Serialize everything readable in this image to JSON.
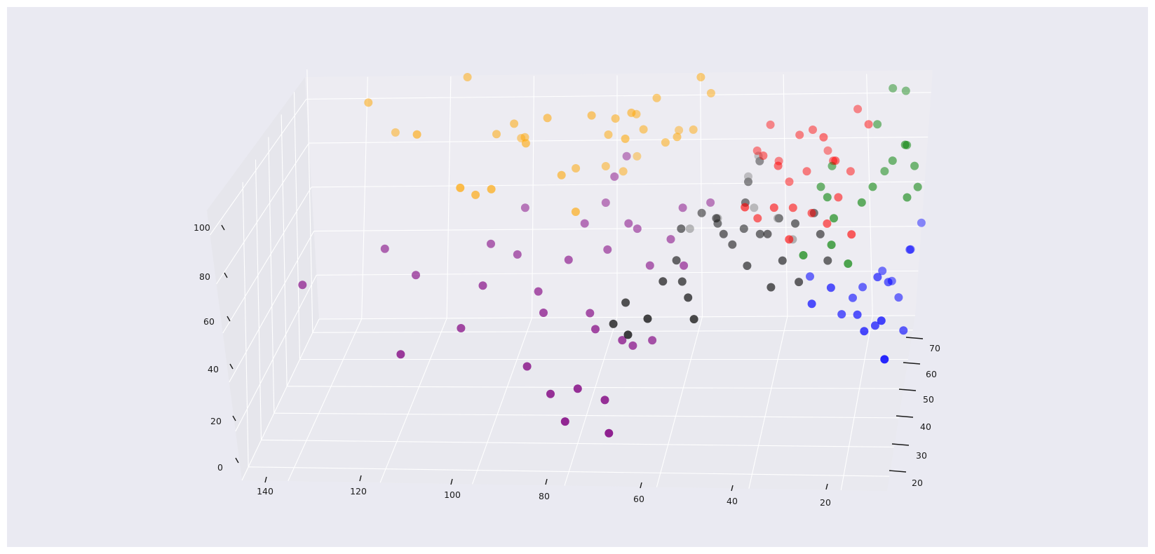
{
  "chart_data": {
    "type": "scatter",
    "projection": "3d",
    "title": "",
    "xlabel": "",
    "ylabel": "",
    "zlabel": "",
    "xlim": [
      10,
      150
    ],
    "ylim": [
      15,
      75
    ],
    "zlim": [
      0,
      110
    ],
    "x_ticks": [
      "140",
      "120",
      "100",
      "80",
      "60",
      "40",
      "20"
    ],
    "y_ticks": [
      "20",
      "30",
      "40",
      "50",
      "60",
      "70"
    ],
    "z_ticks": [
      "0",
      "20",
      "40",
      "60",
      "80",
      "100"
    ],
    "grid": true,
    "legend": "none",
    "series": [
      {
        "color": "#ffa500",
        "points": [
          [
            133,
            58,
            100
          ],
          [
            120,
            50,
            95
          ],
          [
            128,
            62,
            85
          ],
          [
            111,
            60,
            108
          ],
          [
            104,
            58,
            88
          ],
          [
            100,
            58,
            92
          ],
          [
            96,
            52,
            90
          ],
          [
            100,
            65,
            80
          ],
          [
            98,
            60,
            85
          ],
          [
            92,
            56,
            96
          ],
          [
            82,
            56,
            97
          ],
          [
            77,
            58,
            94
          ],
          [
            73,
            56,
            98
          ],
          [
            73,
            62,
            92
          ],
          [
            68,
            60,
            100
          ],
          [
            74,
            54,
            90
          ],
          [
            79,
            60,
            86
          ],
          [
            71,
            60,
            88
          ],
          [
            66,
            60,
            83
          ],
          [
            60,
            62,
            86
          ],
          [
            63,
            58,
            87
          ],
          [
            64,
            66,
            82
          ],
          [
            58,
            60,
            108
          ],
          [
            56,
            62,
            100
          ],
          [
            88,
            52,
            78
          ],
          [
            86,
            58,
            75
          ],
          [
            80,
            62,
            72
          ],
          [
            76,
            62,
            70
          ],
          [
            84,
            48,
            68
          ],
          [
            74,
            68,
            70
          ],
          [
            102,
            44,
            80
          ],
          [
            108,
            40,
            84
          ],
          [
            106,
            46,
            76
          ]
        ]
      },
      {
        "color": "#ff0000",
        "points": [
          [
            46,
            66,
            74
          ],
          [
            44,
            62,
            76
          ],
          [
            41,
            66,
            70
          ],
          [
            38,
            62,
            66
          ],
          [
            34,
            62,
            70
          ],
          [
            30,
            68,
            72
          ],
          [
            32,
            56,
            60
          ],
          [
            28,
            62,
            74
          ],
          [
            27,
            58,
            78
          ],
          [
            24,
            62,
            70
          ],
          [
            46,
            48,
            70
          ],
          [
            40,
            52,
            66
          ],
          [
            36,
            54,
            64
          ],
          [
            28,
            52,
            60
          ],
          [
            26,
            56,
            66
          ],
          [
            22,
            48,
            60
          ],
          [
            43,
            66,
            84
          ],
          [
            40,
            58,
            76
          ],
          [
            36,
            64,
            82
          ],
          [
            33,
            64,
            84
          ],
          [
            30,
            60,
            85
          ],
          [
            23,
            66,
            90
          ],
          [
            20,
            62,
            88
          ],
          [
            44,
            54,
            60
          ],
          [
            36,
            48,
            58
          ]
        ]
      },
      {
        "color": "#008000",
        "points": [
          [
            15,
            66,
            98
          ],
          [
            12,
            66,
            97
          ],
          [
            18,
            62,
            88
          ],
          [
            11,
            56,
            86
          ],
          [
            11,
            60,
            82
          ],
          [
            14,
            58,
            78
          ],
          [
            9,
            58,
            76
          ],
          [
            10,
            52,
            70
          ],
          [
            18,
            54,
            72
          ],
          [
            20,
            50,
            70
          ],
          [
            26,
            48,
            66
          ],
          [
            28,
            52,
            70
          ],
          [
            28,
            60,
            74
          ],
          [
            30,
            56,
            70
          ],
          [
            32,
            42,
            58
          ],
          [
            26,
            44,
            60
          ],
          [
            22,
            42,
            55
          ],
          [
            16,
            60,
            72
          ],
          [
            8,
            56,
            70
          ]
        ]
      },
      {
        "color": "#0000ff",
        "points": [
          [
            12,
            26,
            36
          ],
          [
            14,
            38,
            38
          ],
          [
            16,
            48,
            44
          ],
          [
            14,
            52,
            38
          ],
          [
            10,
            60,
            42
          ],
          [
            26,
            44,
            44
          ],
          [
            30,
            42,
            40
          ],
          [
            20,
            44,
            34
          ],
          [
            18,
            40,
            32
          ],
          [
            16,
            44,
            30
          ],
          [
            10,
            48,
            24
          ],
          [
            12,
            56,
            28
          ],
          [
            14,
            60,
            30
          ],
          [
            24,
            48,
            30
          ],
          [
            22,
            52,
            32
          ],
          [
            20,
            54,
            34
          ],
          [
            16,
            58,
            36
          ],
          [
            32,
            54,
            38
          ],
          [
            8,
            66,
            46
          ],
          [
            10,
            62,
            40
          ]
        ]
      },
      {
        "color": "#000000",
        "points": [
          [
            58,
            62,
            54
          ],
          [
            54,
            60,
            52
          ],
          [
            52,
            56,
            52
          ],
          [
            48,
            60,
            50
          ],
          [
            44,
            58,
            50
          ],
          [
            42,
            56,
            52
          ],
          [
            36,
            58,
            54
          ],
          [
            32,
            60,
            56
          ],
          [
            30,
            56,
            52
          ],
          [
            62,
            52,
            46
          ],
          [
            64,
            46,
            44
          ],
          [
            60,
            48,
            42
          ],
          [
            58,
            44,
            40
          ],
          [
            56,
            40,
            36
          ],
          [
            66,
            38,
            38
          ],
          [
            70,
            36,
            34
          ],
          [
            74,
            40,
            34
          ],
          [
            72,
            44,
            38
          ],
          [
            40,
            48,
            40
          ],
          [
            34,
            50,
            40
          ],
          [
            28,
            54,
            44
          ],
          [
            46,
            52,
            44
          ],
          [
            50,
            56,
            48
          ],
          [
            40,
            60,
            54
          ],
          [
            48,
            62,
            58
          ],
          [
            54,
            58,
            56
          ],
          [
            38,
            52,
            46
          ],
          [
            62,
            58,
            52
          ],
          [
            48,
            66,
            62
          ],
          [
            46,
            70,
            66
          ]
        ]
      },
      {
        "color": "#800080",
        "points": [
          [
            145,
            46,
            42
          ],
          [
            128,
            52,
            50
          ],
          [
            120,
            48,
            44
          ],
          [
            104,
            52,
            52
          ],
          [
            98,
            52,
            48
          ],
          [
            98,
            60,
            58
          ],
          [
            86,
            50,
            48
          ],
          [
            84,
            58,
            54
          ],
          [
            80,
            62,
            58
          ],
          [
            74,
            58,
            54
          ],
          [
            78,
            54,
            48
          ],
          [
            72,
            58,
            52
          ],
          [
            62,
            60,
            58
          ],
          [
            56,
            62,
            58
          ],
          [
            64,
            56,
            50
          ],
          [
            78,
            62,
            68
          ],
          [
            76,
            66,
            72
          ],
          [
            92,
            46,
            40
          ],
          [
            90,
            42,
            36
          ],
          [
            80,
            44,
            34
          ],
          [
            78,
            40,
            32
          ],
          [
            72,
            40,
            28
          ],
          [
            70,
            42,
            24
          ],
          [
            66,
            44,
            24
          ],
          [
            80,
            30,
            20
          ],
          [
            74,
            30,
            16
          ],
          [
            72,
            24,
            10
          ],
          [
            82,
            26,
            12
          ],
          [
            86,
            30,
            18
          ],
          [
            92,
            34,
            24
          ],
          [
            108,
            40,
            32
          ],
          [
            120,
            34,
            28
          ],
          [
            104,
            44,
            44
          ],
          [
            60,
            50,
            46
          ],
          [
            68,
            52,
            44
          ]
        ]
      },
      {
        "color": "#808080",
        "points": [
          [
            60,
            58,
            52
          ],
          [
            54,
            60,
            54
          ],
          [
            46,
            62,
            56
          ],
          [
            40,
            58,
            56
          ],
          [
            36,
            54,
            52
          ],
          [
            48,
            66,
            64
          ],
          [
            46,
            68,
            70
          ]
        ]
      }
    ]
  }
}
